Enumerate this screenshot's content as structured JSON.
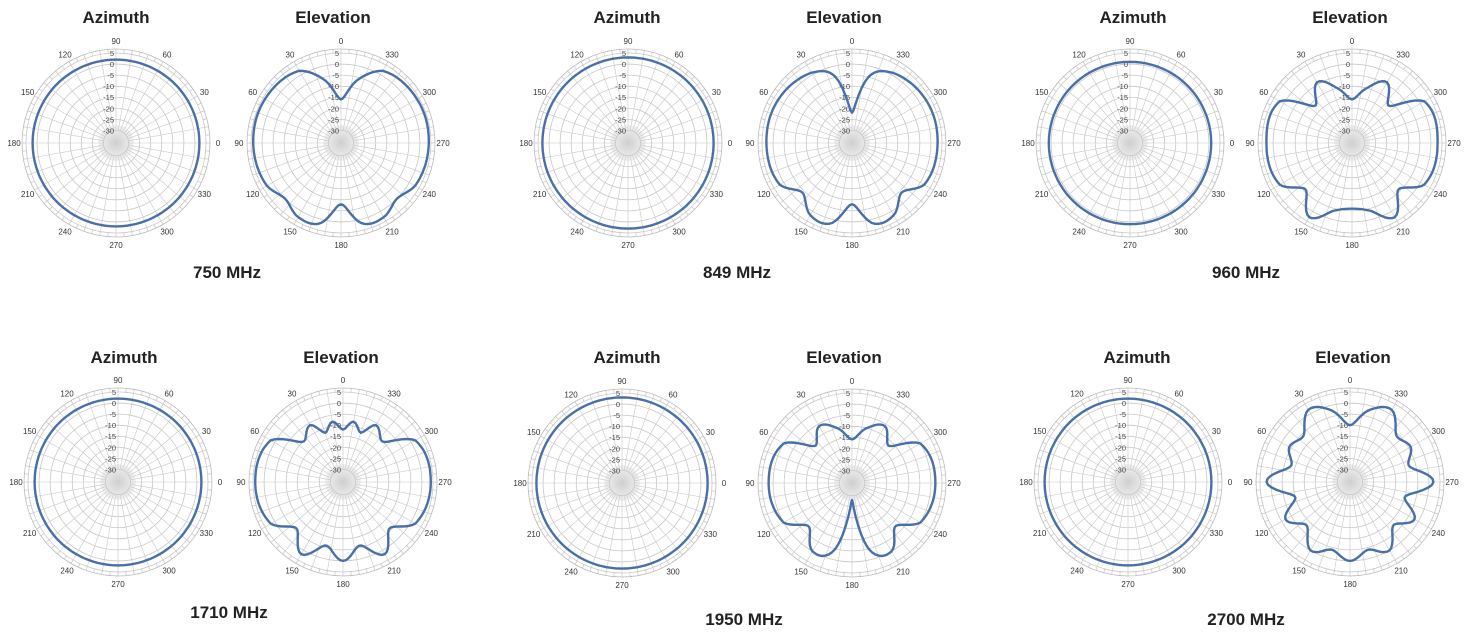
{
  "labels": {
    "azimuth": "Azimuth",
    "elevation": "Elevation"
  },
  "scale": {
    "rings_db": [
      5,
      0,
      -5,
      -10,
      -15,
      -20,
      -25,
      -30
    ],
    "ring_labels": [
      "5",
      "0",
      "-5",
      "-10",
      "-15",
      "-20",
      "-25",
      "-30"
    ]
  },
  "azimuth_angle_labels": [
    "90",
    "60",
    "30",
    "0",
    "330",
    "300",
    "270",
    "240",
    "210",
    "180",
    "150",
    "120"
  ],
  "elevation_angle_labels": [
    "0",
    "330",
    "300",
    "270",
    "240",
    "210",
    "180",
    "150",
    "120",
    "90",
    "60",
    "30"
  ],
  "colors": {
    "trace": "#4a6fa8",
    "grid": "#c8c8c8",
    "center": "#d6d6d6"
  },
  "chart_data": [
    {
      "type": "polar",
      "frequency": "750 MHz",
      "azimuth": {
        "angles_deg": [
          0,
          90,
          180,
          270
        ],
        "gain_db": [
          2,
          2,
          2,
          2
        ]
      },
      "elevation": {
        "angles_deg": [
          0,
          15,
          30,
          60,
          90,
          120,
          135,
          150,
          165,
          180,
          195,
          210,
          225,
          240,
          270,
          300,
          330,
          345
        ],
        "gain_db": [
          -16,
          -6,
          2,
          4,
          4,
          3,
          0,
          3,
          2,
          -8,
          2,
          3,
          0,
          3,
          4,
          4,
          2,
          -6
        ]
      }
    },
    {
      "type": "polar",
      "frequency": "849 MHz",
      "azimuth": {
        "angles_deg": [
          0,
          90,
          180,
          270
        ],
        "gain_db": [
          3,
          3,
          3,
          3
        ]
      },
      "elevation": {
        "angles_deg": [
          0,
          15,
          30,
          60,
          90,
          120,
          135,
          150,
          165,
          180,
          195,
          210,
          225,
          240,
          270,
          300,
          330,
          345
        ],
        "gain_db": [
          -22,
          -4,
          1,
          3,
          3,
          2,
          -4,
          2,
          2,
          -8,
          2,
          2,
          -4,
          2,
          3,
          3,
          1,
          -4
        ]
      }
    },
    {
      "type": "polar",
      "frequency": "960 MHz",
      "azimuth": {
        "angles_deg": [
          0,
          90,
          180,
          270
        ],
        "gain_db": [
          1,
          1,
          1,
          1
        ]
      },
      "elevation": {
        "angles_deg": [
          0,
          15,
          30,
          45,
          60,
          90,
          120,
          135,
          150,
          165,
          180,
          195,
          210,
          225,
          240,
          270,
          300,
          315,
          330,
          345
        ],
        "gain_db": [
          -16,
          -10,
          -4,
          -12,
          2,
          3,
          2,
          -6,
          3,
          -4,
          -6,
          -4,
          3,
          -6,
          2,
          3,
          2,
          -12,
          -4,
          -10
        ]
      }
    },
    {
      "type": "polar",
      "frequency": "1710 MHz",
      "azimuth": {
        "angles_deg": [
          0,
          90,
          180,
          270
        ],
        "gain_db": [
          2,
          2,
          2,
          2
        ]
      },
      "elevation": {
        "angles_deg": [
          0,
          10,
          20,
          30,
          45,
          60,
          90,
          120,
          135,
          150,
          165,
          180,
          195,
          210,
          225,
          240,
          270,
          300,
          315,
          330,
          340,
          350
        ],
        "gain_db": [
          -12,
          -8,
          -12,
          -6,
          -10,
          2,
          4,
          2,
          -6,
          2,
          -6,
          0,
          -6,
          2,
          -6,
          2,
          4,
          2,
          -10,
          -6,
          -12,
          -8
        ]
      }
    },
    {
      "type": "polar",
      "frequency": "1950 MHz",
      "azimuth": {
        "angles_deg": [
          0,
          90,
          180,
          270
        ],
        "gain_db": [
          3,
          3,
          3,
          3
        ]
      },
      "elevation": {
        "angles_deg": [
          0,
          15,
          30,
          45,
          60,
          90,
          120,
          135,
          150,
          165,
          180,
          195,
          210,
          225,
          240,
          270,
          300,
          315,
          330,
          345
        ],
        "gain_db": [
          -16,
          -10,
          -6,
          -12,
          0,
          2,
          0,
          -8,
          0,
          -4,
          -28,
          -4,
          0,
          -8,
          0,
          2,
          0,
          -12,
          -6,
          -10
        ]
      }
    },
    {
      "type": "polar",
      "frequency": "2700 MHz",
      "azimuth": {
        "angles_deg": [
          0,
          90,
          180,
          270
        ],
        "gain_db": [
          2,
          2,
          2,
          2
        ]
      },
      "elevation": {
        "angles_deg": [
          0,
          15,
          30,
          45,
          60,
          75,
          90,
          105,
          120,
          135,
          150,
          165,
          180,
          195,
          210,
          225,
          240,
          255,
          270,
          285,
          300,
          315,
          330,
          345
        ],
        "gain_db": [
          -10,
          -2,
          2,
          -6,
          -4,
          -8,
          2,
          -10,
          -2,
          -8,
          0,
          -4,
          0,
          -4,
          0,
          -8,
          -2,
          -10,
          2,
          -8,
          -4,
          -6,
          2,
          -2
        ]
      }
    }
  ]
}
